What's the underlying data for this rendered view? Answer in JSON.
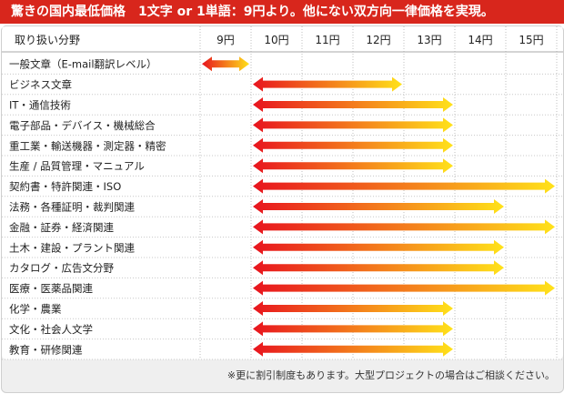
{
  "header": {
    "title": "驚きの国内最低価格　1文字 or 1単語：9円より。他にない双方向一律価格を実現。"
  },
  "chart_data": {
    "type": "range-bar",
    "category_header": "取り扱い分野",
    "x": [
      "9円",
      "10円",
      "11円",
      "12円",
      "13円",
      "14円",
      "15円"
    ],
    "categories": [
      "一般文章（E-mail翻訳レベル）",
      "ビジネス文章",
      "IT・通信技術",
      "電子部品・デバイス・機械総合",
      "重工業・輸送機器・測定器・精密",
      "生産 / 品質管理・マニュアル",
      "契約書・特許関連・ISO",
      "法務・各種証明・裁判関連",
      "金融・証券・経済関連",
      "土木・建設・プラント関連",
      "カタログ・広告文分野",
      "医療・医薬品関連",
      "化学・農業",
      "文化・社会人文学",
      "教育・研修関連"
    ],
    "ranges": [
      [
        9,
        9
      ],
      [
        10,
        12
      ],
      [
        10,
        13
      ],
      [
        10,
        13
      ],
      [
        10,
        13
      ],
      [
        10,
        13
      ],
      [
        10,
        15
      ],
      [
        10,
        14
      ],
      [
        10,
        15
      ],
      [
        10,
        14
      ],
      [
        10,
        14
      ],
      [
        10,
        15
      ],
      [
        10,
        13
      ],
      [
        10,
        13
      ],
      [
        10,
        13
      ]
    ],
    "colors": {
      "header": "#d8261c",
      "arrow_start": "#e8141e",
      "arrow_end": "#ffe21a"
    }
  },
  "footnote": "※更に割引制度もあります。大型プロジェクトの場合はご相談ください。"
}
